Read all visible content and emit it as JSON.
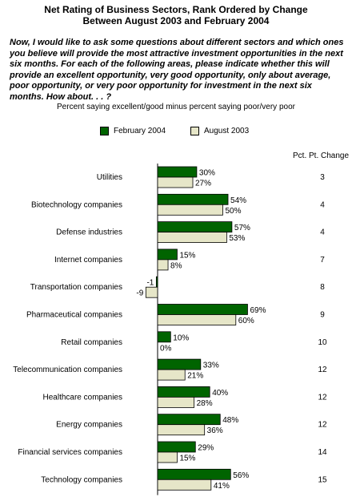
{
  "chart_data": {
    "type": "bar",
    "orientation": "horizontal",
    "title_lines": [
      "Net Rating of Business Sectors, Rank Ordered by Change",
      "Between August 2003 and February 2004"
    ],
    "question": "Now, I would like to ask some questions about different sectors and which ones you believe will provide the most attractive investment opportunities in the next six months. For each of the following areas, please indicate whether this will provide an excellent opportunity, very good opportunity, only about average, poor opportunity, or very poor opportunity for investment in the next six months. How about. . . ?",
    "subtitle": "Percent saying excellent/good minus percent saying poor/very poor",
    "change_header": "Pct. Pt. Change",
    "categories": [
      "Utilities",
      "Biotechnology companies",
      "Defense industries",
      "Internet companies",
      "Transportation companies",
      "Pharmaceutical companies",
      "Retail companies",
      "Telecommunication companies",
      "Healthcare companies",
      "Energy companies",
      "Financial services companies",
      "Technology companies"
    ],
    "series": [
      {
        "name": "February 2004",
        "color": "#006400",
        "values": [
          30,
          54,
          57,
          15,
          -1,
          69,
          10,
          33,
          40,
          48,
          29,
          56
        ],
        "labels": [
          "30%",
          "54%",
          "57%",
          "15%",
          "-1",
          "69%",
          "10%",
          "33%",
          "40%",
          "48%",
          "29%",
          "56%"
        ]
      },
      {
        "name": "August 2003",
        "color": "#E6E6C8",
        "values": [
          27,
          50,
          53,
          8,
          -9,
          60,
          0,
          21,
          28,
          36,
          15,
          41
        ],
        "labels": [
          "27%",
          "50%",
          "53%",
          "8%",
          "-9",
          "60%",
          "0%",
          "21%",
          "28%",
          "36%",
          "15%",
          "41%"
        ]
      }
    ],
    "change": [
      3,
      4,
      4,
      7,
      8,
      9,
      10,
      12,
      12,
      12,
      14,
      15
    ],
    "xlim": [
      -10,
      75
    ],
    "grid": false,
    "legend_position": "top"
  }
}
